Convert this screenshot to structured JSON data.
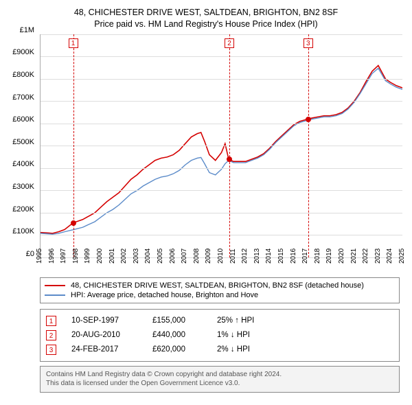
{
  "title": {
    "line1": "48, CHICHESTER DRIVE WEST, SALTDEAN, BRIGHTON, BN2 8SF",
    "line2": "Price paid vs. HM Land Registry's House Price Index (HPI)",
    "fontsize": 12.5
  },
  "chart": {
    "type": "line",
    "background_color": "#ffffff",
    "grid_color": "#dddddd",
    "axis_color": "#aaaaaa",
    "x_domain": [
      1995,
      2025
    ],
    "y_domain": [
      0,
      1000000
    ],
    "y_ticks": [
      0,
      100000,
      200000,
      300000,
      400000,
      500000,
      600000,
      700000,
      800000,
      900000,
      1000000
    ],
    "y_tick_labels": [
      "£0",
      "£100K",
      "£200K",
      "£300K",
      "£400K",
      "£500K",
      "£600K",
      "£700K",
      "£800K",
      "£900K",
      "£1M"
    ],
    "x_ticks": [
      1995,
      1996,
      1997,
      1998,
      1999,
      2000,
      2001,
      2002,
      2003,
      2004,
      2005,
      2006,
      2007,
      2008,
      2009,
      2010,
      2011,
      2012,
      2013,
      2014,
      2015,
      2016,
      2017,
      2018,
      2019,
      2020,
      2021,
      2022,
      2023,
      2024,
      2025
    ],
    "x_tick_labels": [
      "1995",
      "1996",
      "1997",
      "1998",
      "1999",
      "2000",
      "2001",
      "2002",
      "2003",
      "2004",
      "2005",
      "2006",
      "2007",
      "2008",
      "2009",
      "2010",
      "2011",
      "2012",
      "2013",
      "2014",
      "2015",
      "2016",
      "2017",
      "2018",
      "2019",
      "2020",
      "2021",
      "2022",
      "2023",
      "2024",
      "2025"
    ],
    "x_label_fontsize": 10,
    "y_label_fontsize": 11,
    "series": [
      {
        "key": "property",
        "label": "48, CHICHESTER DRIVE WEST, SALTDEAN, BRIGHTON, BN2 8SF (detached house)",
        "color": "#d40000",
        "line_width": 1.6,
        "points": [
          [
            1995.0,
            112000
          ],
          [
            1995.5,
            110000
          ],
          [
            1996.0,
            108000
          ],
          [
            1996.5,
            115000
          ],
          [
            1997.0,
            125000
          ],
          [
            1997.7,
            155000
          ],
          [
            1998.5,
            170000
          ],
          [
            1999.0,
            185000
          ],
          [
            1999.5,
            200000
          ],
          [
            2000.0,
            225000
          ],
          [
            2000.5,
            250000
          ],
          [
            2001.0,
            270000
          ],
          [
            2001.5,
            290000
          ],
          [
            2002.0,
            320000
          ],
          [
            2002.5,
            350000
          ],
          [
            2003.0,
            370000
          ],
          [
            2003.5,
            395000
          ],
          [
            2004.0,
            415000
          ],
          [
            2004.5,
            435000
          ],
          [
            2005.0,
            445000
          ],
          [
            2005.5,
            450000
          ],
          [
            2006.0,
            460000
          ],
          [
            2006.5,
            480000
          ],
          [
            2007.0,
            510000
          ],
          [
            2007.5,
            540000
          ],
          [
            2008.0,
            555000
          ],
          [
            2008.3,
            560000
          ],
          [
            2008.6,
            520000
          ],
          [
            2009.0,
            460000
          ],
          [
            2009.5,
            435000
          ],
          [
            2010.0,
            470000
          ],
          [
            2010.3,
            510000
          ],
          [
            2010.6,
            440000
          ],
          [
            2011.0,
            430000
          ],
          [
            2011.5,
            430000
          ],
          [
            2012.0,
            430000
          ],
          [
            2012.5,
            440000
          ],
          [
            2013.0,
            450000
          ],
          [
            2013.5,
            465000
          ],
          [
            2014.0,
            490000
          ],
          [
            2014.5,
            520000
          ],
          [
            2015.0,
            545000
          ],
          [
            2015.5,
            570000
          ],
          [
            2016.0,
            595000
          ],
          [
            2016.5,
            610000
          ],
          [
            2017.15,
            620000
          ],
          [
            2017.5,
            625000
          ],
          [
            2018.0,
            630000
          ],
          [
            2018.5,
            635000
          ],
          [
            2019.0,
            635000
          ],
          [
            2019.5,
            640000
          ],
          [
            2020.0,
            650000
          ],
          [
            2020.5,
            670000
          ],
          [
            2021.0,
            700000
          ],
          [
            2021.5,
            740000
          ],
          [
            2022.0,
            790000
          ],
          [
            2022.5,
            835000
          ],
          [
            2023.0,
            860000
          ],
          [
            2023.3,
            830000
          ],
          [
            2023.6,
            800000
          ],
          [
            2024.0,
            785000
          ],
          [
            2024.5,
            770000
          ],
          [
            2025.0,
            760000
          ]
        ]
      },
      {
        "key": "hpi",
        "label": "HPI: Average price, detached house, Brighton and Hove",
        "color": "#5b8bc9",
        "line_width": 1.4,
        "points": [
          [
            1995.0,
            108000
          ],
          [
            1995.5,
            106000
          ],
          [
            1996.0,
            104000
          ],
          [
            1996.5,
            108000
          ],
          [
            1997.0,
            115000
          ],
          [
            1997.7,
            124000
          ],
          [
            1998.5,
            135000
          ],
          [
            1999.0,
            148000
          ],
          [
            1999.5,
            160000
          ],
          [
            2000.0,
            180000
          ],
          [
            2000.5,
            200000
          ],
          [
            2001.0,
            215000
          ],
          [
            2001.5,
            235000
          ],
          [
            2002.0,
            260000
          ],
          [
            2002.5,
            285000
          ],
          [
            2003.0,
            300000
          ],
          [
            2003.5,
            320000
          ],
          [
            2004.0,
            335000
          ],
          [
            2004.5,
            350000
          ],
          [
            2005.0,
            360000
          ],
          [
            2005.5,
            365000
          ],
          [
            2006.0,
            375000
          ],
          [
            2006.5,
            390000
          ],
          [
            2007.0,
            415000
          ],
          [
            2007.5,
            435000
          ],
          [
            2008.0,
            445000
          ],
          [
            2008.3,
            448000
          ],
          [
            2008.6,
            420000
          ],
          [
            2009.0,
            380000
          ],
          [
            2009.5,
            370000
          ],
          [
            2010.0,
            395000
          ],
          [
            2010.3,
            420000
          ],
          [
            2010.6,
            435000
          ],
          [
            2011.0,
            425000
          ],
          [
            2011.5,
            425000
          ],
          [
            2012.0,
            425000
          ],
          [
            2012.5,
            435000
          ],
          [
            2013.0,
            445000
          ],
          [
            2013.5,
            460000
          ],
          [
            2014.0,
            485000
          ],
          [
            2014.5,
            515000
          ],
          [
            2015.0,
            540000
          ],
          [
            2015.5,
            565000
          ],
          [
            2016.0,
            590000
          ],
          [
            2016.5,
            605000
          ],
          [
            2017.15,
            615000
          ],
          [
            2017.5,
            620000
          ],
          [
            2018.0,
            625000
          ],
          [
            2018.5,
            630000
          ],
          [
            2019.0,
            630000
          ],
          [
            2019.5,
            635000
          ],
          [
            2020.0,
            645000
          ],
          [
            2020.5,
            665000
          ],
          [
            2021.0,
            695000
          ],
          [
            2021.5,
            735000
          ],
          [
            2022.0,
            780000
          ],
          [
            2022.5,
            825000
          ],
          [
            2023.0,
            848000
          ],
          [
            2023.3,
            820000
          ],
          [
            2023.6,
            792000
          ],
          [
            2024.0,
            778000
          ],
          [
            2024.5,
            763000
          ],
          [
            2025.0,
            753000
          ]
        ]
      }
    ],
    "markers": [
      {
        "n": "1",
        "x": 1997.7,
        "color": "#d40000"
      },
      {
        "n": "2",
        "x": 2010.63,
        "color": "#d40000"
      },
      {
        "n": "3",
        "x": 2017.15,
        "color": "#d40000"
      }
    ],
    "sale_points": [
      {
        "x": 1997.7,
        "y": 155000,
        "color": "#d40000"
      },
      {
        "x": 2010.63,
        "y": 440000,
        "color": "#d40000"
      },
      {
        "x": 2017.15,
        "y": 620000,
        "color": "#d40000"
      }
    ]
  },
  "legend": {
    "items": [
      {
        "color": "#d40000",
        "label": "48, CHICHESTER DRIVE WEST, SALTDEAN, BRIGHTON, BN2 8SF (detached house)"
      },
      {
        "color": "#5b8bc9",
        "label": "HPI: Average price, detached house, Brighton and Hove"
      }
    ]
  },
  "transactions": [
    {
      "n": "1",
      "color": "#d40000",
      "date": "10-SEP-1997",
      "price": "£155,000",
      "delta": "25% ↑ HPI"
    },
    {
      "n": "2",
      "color": "#d40000",
      "date": "20-AUG-2010",
      "price": "£440,000",
      "delta": "1% ↓ HPI"
    },
    {
      "n": "3",
      "color": "#d40000",
      "date": "24-FEB-2017",
      "price": "£620,000",
      "delta": "2% ↓ HPI"
    }
  ],
  "footer": {
    "line1": "Contains HM Land Registry data © Crown copyright and database right 2024.",
    "line2": "This data is licensed under the Open Government Licence v3.0."
  }
}
